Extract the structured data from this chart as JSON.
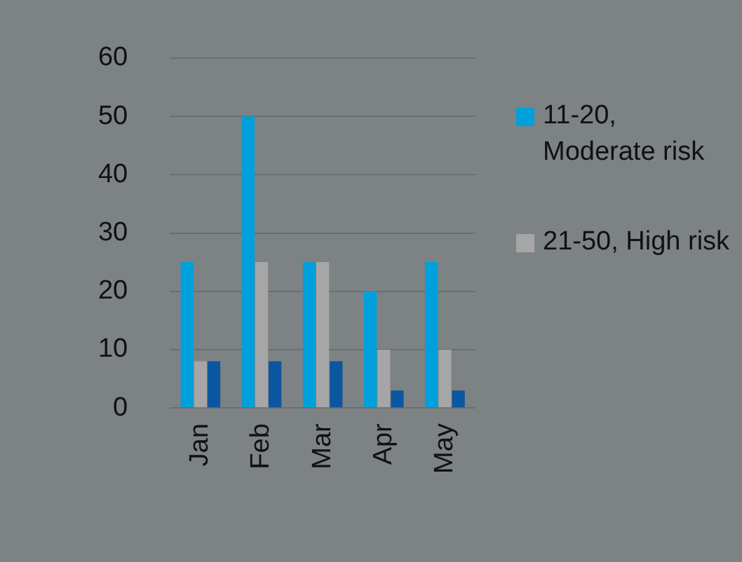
{
  "chart_data": {
    "type": "bar",
    "categories": [
      "Jan",
      "Feb",
      "Mar",
      "Apr",
      "May"
    ],
    "series": [
      {
        "name": "11-20, Moderate risk",
        "color": "#00a0dc",
        "values": [
          25,
          50,
          25,
          20,
          25
        ]
      },
      {
        "name": "21-50, High risk",
        "color": "#a6a6a6",
        "values": [
          8,
          25,
          25,
          10,
          10
        ]
      },
      {
        "color": "#0b56a0",
        "values": [
          8,
          8,
          8,
          3,
          3
        ]
      }
    ],
    "ylim": [
      0,
      60
    ],
    "yticks": [
      0,
      10,
      20,
      30,
      40,
      50,
      60
    ],
    "grid": "y",
    "legend": "right"
  }
}
